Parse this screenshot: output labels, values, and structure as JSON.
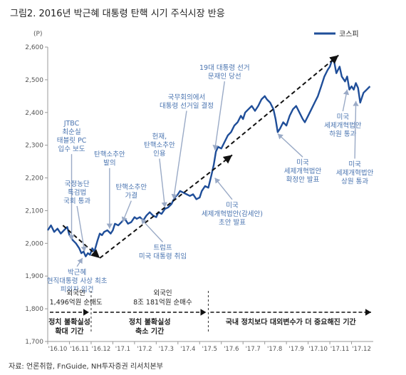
{
  "figure_title": "그림2. 2016년 박근혜 대통령 탄핵 시기 주식시장 반응",
  "source": "자료: 언론취합, FnGuide, NH투자증권 리서치본부",
  "colors": {
    "line": "#1f4e99",
    "text": "#555555",
    "label": "#4a74b0",
    "dark": "#222222",
    "arrow": "#111111"
  },
  "chart_data": {
    "type": "line",
    "yunit": "(P)",
    "ylim": [
      1700,
      2600
    ],
    "yticks": [
      1700,
      1800,
      1900,
      2000,
      2100,
      2200,
      2300,
      2400,
      2500,
      2600
    ],
    "x_ticks": [
      "'16.10",
      "'16.11",
      "'16.12",
      "'17.1",
      "'17.2",
      "'17.3",
      "'17.4",
      "'17.5",
      "'17.6",
      "'17.7",
      "'17.8",
      "'17.9",
      "'17.10",
      "'17.11",
      "'17.12"
    ],
    "xlim": [
      0,
      15
    ],
    "series": [
      {
        "name": "코스피",
        "points": [
          [
            0.0,
            2040
          ],
          [
            0.15,
            2055
          ],
          [
            0.3,
            2035
          ],
          [
            0.45,
            2045
          ],
          [
            0.6,
            2030
          ],
          [
            0.75,
            2040
          ],
          [
            0.9,
            2050
          ],
          [
            1.0,
            2025
          ],
          [
            1.15,
            2010
          ],
          [
            1.3,
            2000
          ],
          [
            1.45,
            1985
          ],
          [
            1.55,
            1970
          ],
          [
            1.65,
            1975
          ],
          [
            1.75,
            1960
          ],
          [
            1.85,
            1970
          ],
          [
            1.95,
            1965
          ],
          [
            2.05,
            1985
          ],
          [
            2.15,
            1975
          ],
          [
            2.3,
            2010
          ],
          [
            2.4,
            2030
          ],
          [
            2.5,
            2025
          ],
          [
            2.6,
            2035
          ],
          [
            2.75,
            2040
          ],
          [
            2.9,
            2030
          ],
          [
            3.0,
            2040
          ],
          [
            3.1,
            2060
          ],
          [
            3.25,
            2055
          ],
          [
            3.4,
            2065
          ],
          [
            3.55,
            2075
          ],
          [
            3.7,
            2060
          ],
          [
            3.85,
            2065
          ],
          [
            4.0,
            2080
          ],
          [
            4.1,
            2075
          ],
          [
            4.25,
            2080
          ],
          [
            4.4,
            2070
          ],
          [
            4.55,
            2085
          ],
          [
            4.7,
            2095
          ],
          [
            4.85,
            2085
          ],
          [
            5.0,
            2080
          ],
          [
            5.1,
            2095
          ],
          [
            5.25,
            2090
          ],
          [
            5.4,
            2105
          ],
          [
            5.55,
            2110
          ],
          [
            5.7,
            2120
          ],
          [
            5.85,
            2140
          ],
          [
            6.0,
            2150
          ],
          [
            6.1,
            2160
          ],
          [
            6.25,
            2155
          ],
          [
            6.4,
            2150
          ],
          [
            6.55,
            2145
          ],
          [
            6.7,
            2150
          ],
          [
            6.85,
            2135
          ],
          [
            7.0,
            2140
          ],
          [
            7.1,
            2160
          ],
          [
            7.25,
            2175
          ],
          [
            7.4,
            2170
          ],
          [
            7.55,
            2210
          ],
          [
            7.65,
            2240
          ],
          [
            7.75,
            2280
          ],
          [
            7.85,
            2295
          ],
          [
            8.0,
            2290
          ],
          [
            8.15,
            2310
          ],
          [
            8.3,
            2330
          ],
          [
            8.45,
            2340
          ],
          [
            8.6,
            2360
          ],
          [
            8.75,
            2370
          ],
          [
            8.9,
            2390
          ],
          [
            9.0,
            2380
          ],
          [
            9.1,
            2400
          ],
          [
            9.25,
            2410
          ],
          [
            9.4,
            2420
          ],
          [
            9.55,
            2405
          ],
          [
            9.7,
            2420
          ],
          [
            9.85,
            2440
          ],
          [
            10.0,
            2450
          ],
          [
            10.1,
            2440
          ],
          [
            10.25,
            2430
          ],
          [
            10.4,
            2410
          ],
          [
            10.5,
            2380
          ],
          [
            10.6,
            2340
          ],
          [
            10.7,
            2350
          ],
          [
            10.85,
            2370
          ],
          [
            11.0,
            2360
          ],
          [
            11.15,
            2390
          ],
          [
            11.3,
            2410
          ],
          [
            11.45,
            2420
          ],
          [
            11.6,
            2400
          ],
          [
            11.75,
            2380
          ],
          [
            11.85,
            2370
          ],
          [
            12.0,
            2390
          ],
          [
            12.15,
            2410
          ],
          [
            12.3,
            2430
          ],
          [
            12.45,
            2450
          ],
          [
            12.6,
            2480
          ],
          [
            12.75,
            2510
          ],
          [
            12.9,
            2530
          ],
          [
            13.0,
            2540
          ],
          [
            13.1,
            2560
          ],
          [
            13.2,
            2555
          ],
          [
            13.3,
            2520
          ],
          [
            13.45,
            2540
          ],
          [
            13.55,
            2510
          ],
          [
            13.7,
            2495
          ],
          [
            13.8,
            2510
          ],
          [
            13.9,
            2470
          ],
          [
            14.0,
            2480
          ],
          [
            14.1,
            2470
          ],
          [
            14.2,
            2490
          ],
          [
            14.3,
            2475
          ],
          [
            14.4,
            2430
          ],
          [
            14.55,
            2460
          ],
          [
            14.7,
            2470
          ],
          [
            14.85,
            2480
          ]
        ]
      }
    ],
    "trend_arrows": [
      {
        "from": [
          0.7,
          2055
        ],
        "to": [
          2.4,
          1955
        ]
      },
      {
        "from": [
          2.4,
          1955
        ],
        "to": [
          8.5,
          2270
        ]
      },
      {
        "from": [
          8.2,
          2290
        ],
        "to": [
          13.4,
          2575
        ]
      }
    ],
    "annotations": [
      {
        "lines": [
          "JTBC",
          "최순실",
          "태블릿 PC",
          "입수 보도"
        ],
        "x": 1.1,
        "y_label": 2360,
        "target": [
          1.1,
          2010
        ]
      },
      {
        "lines": [
          "국정농단",
          "특검법",
          "국회 통과"
        ],
        "x": 1.35,
        "y_label": 2175,
        "target": [
          1.7,
          1975
        ]
      },
      {
        "lines": [
          "탄핵소추안",
          "발의"
        ],
        "x": 2.85,
        "y_label": 2265,
        "target": [
          2.85,
          2045
        ]
      },
      {
        "lines": [
          "탄핵소추안",
          "가결"
        ],
        "x": 3.85,
        "y_label": 2165,
        "target": [
          3.45,
          2065
        ]
      },
      {
        "lines": [
          "헌재,",
          "탄핵소추안",
          "인용"
        ],
        "x": 5.15,
        "y_label": 2320,
        "target": [
          5.4,
          2110
        ]
      },
      {
        "lines": [
          "국무회의에서",
          "대통령 선거일 결정"
        ],
        "x": 6.4,
        "y_label": 2440,
        "target": [
          5.8,
          2135
        ]
      },
      {
        "lines": [
          "19대 대통령 선거",
          "문재인 당선"
        ],
        "x": 8.15,
        "y_label": 2530,
        "target": [
          7.7,
          2285
        ]
      },
      {
        "lines": [
          "트럼프",
          "미국 대통령 취임"
        ],
        "x": 5.3,
        "y_label": 1980,
        "target": [
          4.3,
          2075
        ]
      },
      {
        "lines": [
          "미국",
          "세제개혁법안(감세안)",
          "초안 발표"
        ],
        "x": 8.5,
        "y_label": 2110,
        "target": [
          7.7,
          2200
        ]
      },
      {
        "lines": [
          "미국",
          "세제개혁법안",
          "확정안 발표"
        ],
        "x": 11.75,
        "y_label": 2240,
        "target": [
          10.6,
          2335
        ]
      },
      {
        "lines": [
          "미국",
          "세제개혁법안",
          "하원 통과"
        ],
        "x": 13.6,
        "y_label": 2380,
        "target": [
          13.8,
          2470
        ]
      },
      {
        "lines": [
          "미국",
          "세제개혁법안",
          "상원 통과"
        ],
        "x": 14.15,
        "y_label": 2235,
        "target": [
          14.2,
          2435
        ]
      },
      {
        "lines": [
          "박근혜",
          "현직대통령 사상 최초",
          "피의자 입건"
        ],
        "x": 1.35,
        "y_label": 1905,
        "target": [
          1.6,
          1955
        ]
      }
    ],
    "flow_notes": [
      {
        "lines": [
          "외국인",
          "1,496억원 순매도"
        ],
        "x": 1.3
      },
      {
        "lines": [
          "외국인",
          "8조 181억원 순매수"
        ],
        "x": 5.3
      }
    ],
    "phases": [
      {
        "lines": [
          "정치 불확실성",
          "확대 기간"
        ],
        "start": 0.0,
        "end": 2.0
      },
      {
        "lines": [
          "정치 불확실성",
          "축소 기간"
        ],
        "start": 2.0,
        "end": 7.4
      },
      {
        "lines": [
          "국내 정치보다 대외변수가 더 중요해진 기간"
        ],
        "start": 7.4,
        "end": 15.0
      }
    ]
  }
}
